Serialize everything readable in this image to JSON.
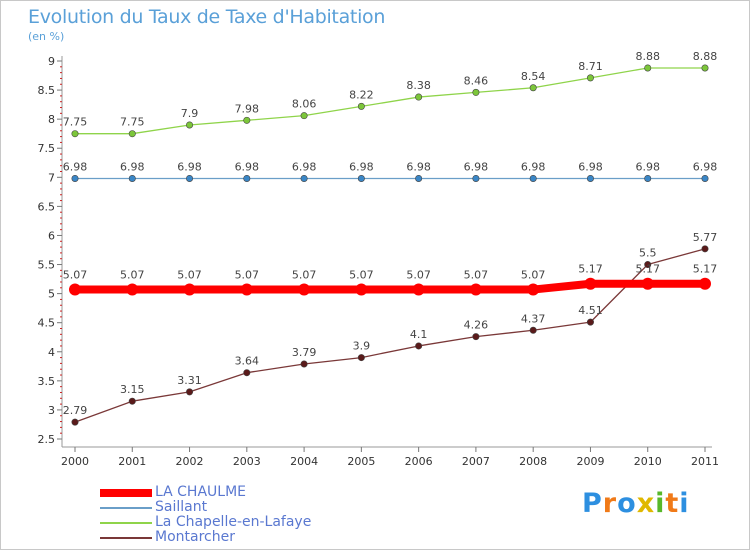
{
  "title": "Evolution du Taux de Taxe d'Habitation",
  "subtitle": "(en %)",
  "logo": {
    "letters": [
      "P",
      "r",
      "o",
      "x",
      "i",
      "t",
      "i"
    ],
    "colors": [
      "#2d8fe0",
      "#f07a18",
      "#2d8fe0",
      "#e0b800",
      "#58b82a",
      "#f07a18",
      "#2d8fe0"
    ]
  },
  "chart_data": {
    "type": "line",
    "x": [
      "2000",
      "2001",
      "2002",
      "2003",
      "2004",
      "2005",
      "2006",
      "2007",
      "2008",
      "2009",
      "2010",
      "2011"
    ],
    "ylim": [
      2.5,
      9
    ],
    "yticks": [
      2.5,
      3,
      3.5,
      4,
      4.5,
      5,
      5.5,
      6,
      6.5,
      7,
      7.5,
      8,
      8.5,
      9
    ],
    "grid": false,
    "legend_position": "bottom-left",
    "series": [
      {
        "name": "La Chapelle-en-Lafaye",
        "color": "#8fd44a",
        "point_color": "#7cc63a",
        "values": [
          7.75,
          7.75,
          7.9,
          7.98,
          8.06,
          8.22,
          8.38,
          8.46,
          8.54,
          8.71,
          8.88,
          8.88
        ],
        "labels": [
          "7.75",
          "7.75",
          "7.9",
          "7.98",
          "8.06",
          "8.22",
          "8.38",
          "8.46",
          "8.54",
          "8.71",
          "8.88",
          "8.88"
        ]
      },
      {
        "name": "Saillant",
        "color": "#6a9ec8",
        "point_color": "#3a86c6",
        "values": [
          6.98,
          6.98,
          6.98,
          6.98,
          6.98,
          6.98,
          6.98,
          6.98,
          6.98,
          6.98,
          6.98,
          6.98
        ],
        "labels": [
          "6.98",
          "6.98",
          "6.98",
          "6.98",
          "6.98",
          "6.98",
          "6.98",
          "6.98",
          "6.98",
          "6.98",
          "6.98",
          "6.98"
        ]
      },
      {
        "name": "Montarcher",
        "color": "#7a3838",
        "point_color": "#5a1a1a",
        "values": [
          2.79,
          3.15,
          3.31,
          3.64,
          3.79,
          3.9,
          4.1,
          4.26,
          4.37,
          4.51,
          5.5,
          5.77
        ],
        "labels": [
          "2.79",
          "3.15",
          "3.31",
          "3.64",
          "3.79",
          "3.9",
          "4.1",
          "4.26",
          "4.37",
          "4.51",
          "5.5",
          "5.77"
        ]
      },
      {
        "name": "LA CHAULME",
        "color": "#ff0000",
        "point_color": "#ff0000",
        "values": [
          5.07,
          5.07,
          5.07,
          5.07,
          5.07,
          5.07,
          5.07,
          5.07,
          5.07,
          5.17,
          5.17,
          5.17
        ],
        "labels": [
          "5.07",
          "5.07",
          "5.07",
          "5.07",
          "5.07",
          "5.07",
          "5.07",
          "5.07",
          "5.07",
          "5.17",
          "5.17",
          "5.17"
        ]
      }
    ],
    "legend": [
      {
        "name": "LA CHAULME",
        "color": "#ff0000"
      },
      {
        "name": "Saillant",
        "color": "#6a9ec8"
      },
      {
        "name": "La Chapelle-en-Lafaye",
        "color": "#8fd44a"
      },
      {
        "name": "Montarcher",
        "color": "#7a3838"
      }
    ]
  }
}
